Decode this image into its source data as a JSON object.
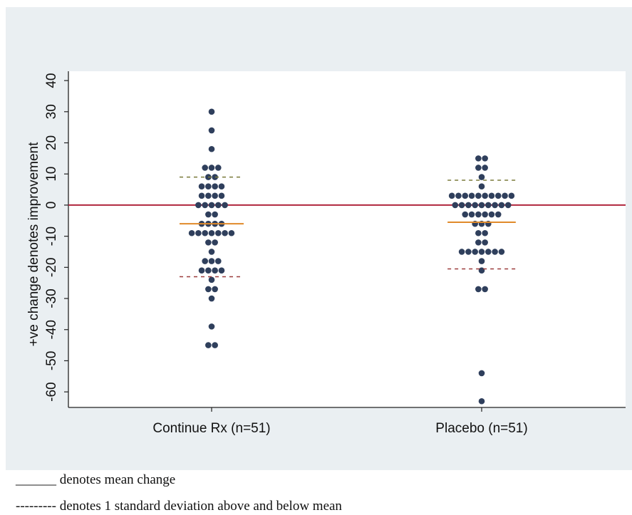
{
  "chart_data": {
    "type": "scatter",
    "subtype": "dot-strip",
    "ylabel": "+ve change denotes improvement",
    "ylim": [
      -65,
      43
    ],
    "yticks": [
      40,
      30,
      20,
      10,
      0,
      -10,
      -20,
      -30,
      -40,
      -50,
      -60
    ],
    "reference_line_y": 0,
    "grid": false,
    "categories": [
      "Continue Rx (n=51)",
      "Placebo (n=51)"
    ],
    "groups": [
      {
        "category": "Continue Rx (n=51)",
        "mean": -6,
        "sd_upper": 9,
        "sd_lower": -23,
        "values": [
          30,
          24,
          18,
          12,
          12,
          12,
          9,
          9,
          6,
          6,
          6,
          6,
          3,
          3,
          3,
          3,
          0,
          0,
          0,
          0,
          0,
          -3,
          -3,
          -6,
          -6,
          -6,
          -6,
          -9,
          -9,
          -9,
          -9,
          -9,
          -9,
          -9,
          -12,
          -12,
          -15,
          -18,
          -18,
          -18,
          -21,
          -21,
          -21,
          -21,
          -24,
          -27,
          -27,
          -30,
          -39,
          -45,
          -45
        ]
      },
      {
        "category": "Placebo (n=51)",
        "mean": -5.5,
        "sd_upper": 8,
        "sd_lower": -20.5,
        "values": [
          15,
          15,
          12,
          12,
          9,
          6,
          3,
          3,
          3,
          3,
          3,
          3,
          3,
          3,
          3,
          3,
          0,
          0,
          0,
          0,
          0,
          0,
          0,
          0,
          0,
          -3,
          -3,
          -3,
          -3,
          -3,
          -3,
          -6,
          -6,
          -6,
          -9,
          -9,
          -12,
          -12,
          -15,
          -15,
          -15,
          -15,
          -15,
          -15,
          -15,
          -18,
          -21,
          -27,
          -27,
          -54,
          -63
        ]
      }
    ]
  },
  "colors": {
    "frame_bg": "#eaeff2",
    "plot_bg": "#ffffff",
    "dot": "#2f3f5c",
    "mean": "#e08a2a",
    "sd_upper": "#7a7a3a",
    "sd_lower": "#9c3b3b",
    "zero_line": "#b0263d",
    "axis": "#222222"
  },
  "legend": {
    "mean_text": "______ denotes mean change",
    "sd_text": "--------- denotes 1 standard deviation above and below mean"
  }
}
